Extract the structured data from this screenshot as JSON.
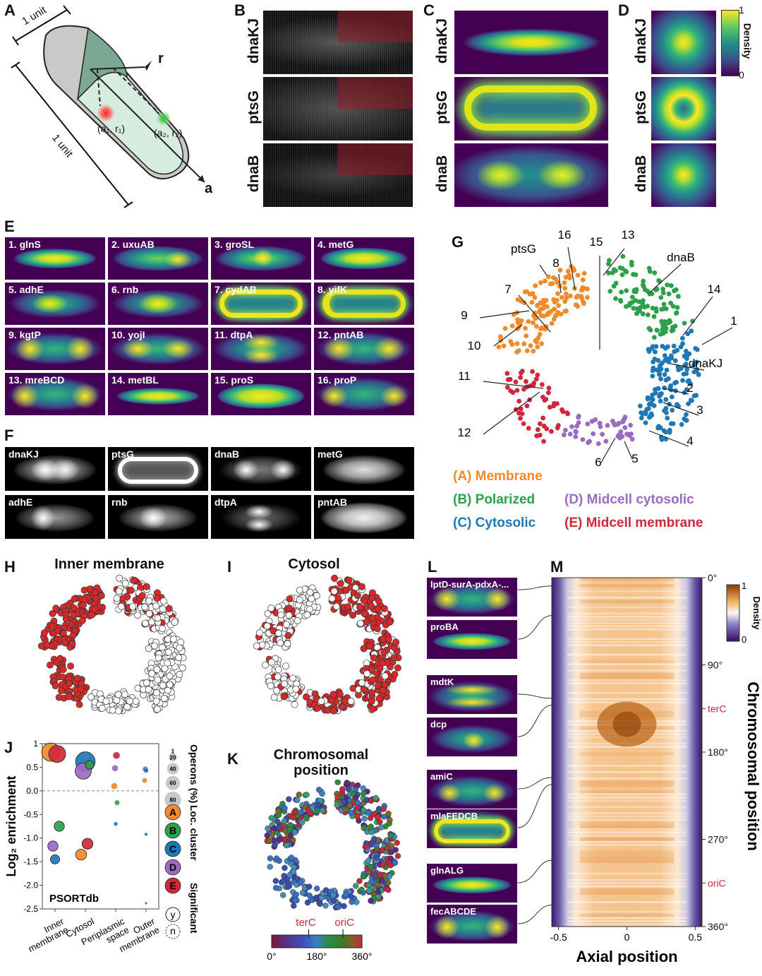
{
  "panels": {
    "A": "A",
    "B": "B",
    "C": "C",
    "D": "D",
    "E": "E",
    "F": "F",
    "G": "G",
    "H": "H",
    "I": "I",
    "J": "J",
    "K": "K",
    "L": "L",
    "M": "M"
  },
  "panelA": {
    "unit_top": "1 unit",
    "unit_side": "1 unit",
    "axis_r": "r",
    "axis_a": "a",
    "point1": "(a₁, r₁)",
    "point2": "(a₂, r₂)"
  },
  "genes_bcd": [
    "dnaKJ",
    "ptsG",
    "dnaB"
  ],
  "colorbar_d": {
    "title": "Density",
    "max": "1",
    "min": "0"
  },
  "panelE": [
    "1. glnS",
    "2. uxuAB",
    "3. groSL",
    "4. metG",
    "5. adhE",
    "6. rnb",
    "7. cydAB",
    "8. yifK",
    "9. kgtP",
    "10. yojI",
    "11. dtpA",
    "12. pntAB",
    "13. mreBCD",
    "14. metBL",
    "15. proS",
    "16. proP"
  ],
  "panelF": [
    "dnaKJ",
    "ptsG",
    "dnaB",
    "metG",
    "adhE",
    "rnb",
    "dtpA",
    "pntAB"
  ],
  "panelG": {
    "labels": [
      "ptsG",
      "16",
      "15",
      "13",
      "dnaB",
      "8",
      "7",
      "14",
      "9",
      "1",
      "10",
      "dnaKJ",
      "11",
      "2",
      "3",
      "12",
      "4",
      "6",
      "5"
    ],
    "legend": [
      {
        "text": "(A) Membrane",
        "color": "#f08a2c"
      },
      {
        "text": "(B) Polarized",
        "color": "#2ca04b"
      },
      {
        "text": "(D) Midcell cytosolic",
        "color": "#9b6bc2"
      },
      {
        "text": "(C) Cytosolic",
        "color": "#1f77b4"
      },
      {
        "text": "(E) Midcell membrane",
        "color": "#d0283a"
      }
    ]
  },
  "panelH": {
    "title": "Inner membrane"
  },
  "panelI": {
    "title": "Cytosol"
  },
  "panelK": {
    "title_line1": "Chromosomal",
    "title_line2": "position",
    "terC": "terC",
    "oriC": "oriC",
    "tick0": "0°",
    "tick180": "180°",
    "tick360": "360°"
  },
  "chart_data": {
    "type": "scatter",
    "ylabel": "Log₂ enrichment",
    "inset_label": "PSORTdb",
    "categories": [
      "Inner membrane",
      "Cytosol",
      "Periplasmic space",
      "Outer membrane"
    ],
    "ylim": [
      -2.5,
      1.0
    ],
    "yticks": [
      "1",
      "0.5",
      "0.0",
      "-0.5",
      "-1.0",
      "-1.5",
      "-2.0",
      "-2.5"
    ],
    "size_legend_title": "Operons (%)",
    "size_legend": [
      "1",
      "20",
      "40",
      "60",
      "80"
    ],
    "cluster_legend_title": "Loc. cluster",
    "cluster_legend": [
      {
        "label": "A",
        "color": "#f08a2c"
      },
      {
        "label": "B",
        "color": "#2ca04b"
      },
      {
        "label": "C",
        "color": "#1f77b4"
      },
      {
        "label": "D",
        "color": "#9b6bc2"
      },
      {
        "label": "E",
        "color": "#d0283a"
      }
    ],
    "sig_legend_title": "Significant",
    "sig_legend": [
      "y",
      "n"
    ],
    "points": [
      {
        "cat": 0,
        "cluster": "A",
        "y": 0.82,
        "size": 70
      },
      {
        "cat": 0,
        "cluster": "E",
        "y": 0.78,
        "size": 60
      },
      {
        "cat": 0,
        "cluster": "B",
        "y": -0.75,
        "size": 22
      },
      {
        "cat": 0,
        "cluster": "D",
        "y": -1.17,
        "size": 22
      },
      {
        "cat": 0,
        "cluster": "C",
        "y": -1.45,
        "size": 18
      },
      {
        "cat": 1,
        "cluster": "C",
        "y": 0.62,
        "size": 80
      },
      {
        "cat": 1,
        "cluster": "D",
        "y": 0.42,
        "size": 55
      },
      {
        "cat": 1,
        "cluster": "B",
        "y": 0.55,
        "size": 15
      },
      {
        "cat": 1,
        "cluster": "E",
        "y": -1.12,
        "size": 25
      },
      {
        "cat": 1,
        "cluster": "A",
        "y": -1.35,
        "size": 25
      },
      {
        "cat": 2,
        "cluster": "E",
        "y": 0.75,
        "size": 10
      },
      {
        "cat": 2,
        "cluster": "D",
        "y": 0.48,
        "size": 8
      },
      {
        "cat": 2,
        "cluster": "A",
        "y": 0.1,
        "size": 8
      },
      {
        "cat": 2,
        "cluster": "B",
        "y": -0.25,
        "size": 5
      },
      {
        "cat": 2,
        "cluster": "C",
        "y": -0.7,
        "size": 3
      },
      {
        "cat": 3,
        "cluster": "D",
        "y": 0.46,
        "size": 6
      },
      {
        "cat": 3,
        "cluster": "A",
        "y": 0.22,
        "size": 5
      },
      {
        "cat": 3,
        "cluster": "C",
        "y": 0.43,
        "size": 4
      },
      {
        "cat": 3,
        "cluster": "C",
        "y": -0.92,
        "size": 2
      },
      {
        "cat": 3,
        "cluster": "C",
        "y": -2.38,
        "size": 1
      }
    ]
  },
  "panelL": [
    "lptD-surA-pdxA-...",
    "proBA",
    "mdtK",
    "dcp",
    "amiC",
    "mlaFEDCB",
    "glnALG",
    "fecABCDE"
  ],
  "panelM": {
    "xlabel": "Axial position",
    "xticks": [
      "-0.5",
      "0",
      "0.5"
    ],
    "ylabel": "Chromosomal position",
    "yticks": [
      "0°",
      "90°",
      "terC",
      "180°",
      "270°",
      "oriC",
      "360°"
    ],
    "colorbar_title": "Density",
    "colorbar_max": "1",
    "colorbar_min": "0"
  }
}
